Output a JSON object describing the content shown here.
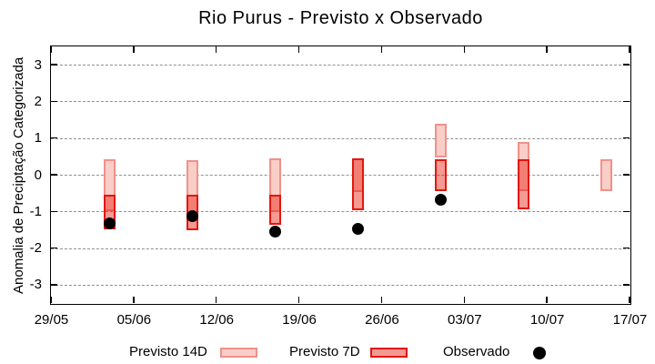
{
  "title": "Rio Purus - Previsto x Observado",
  "y_axis": {
    "label": "Anomalia de Preciptação Categorizada",
    "tick_values": [
      3,
      2,
      1,
      0,
      -1,
      -2,
      -3
    ],
    "range": [
      -3.5,
      3.5
    ]
  },
  "x_axis": {
    "tick_labels": [
      "29/05",
      "05/06",
      "12/06",
      "19/06",
      "26/06",
      "03/07",
      "10/07",
      "17/07"
    ],
    "tick_days": [
      0,
      7,
      14,
      21,
      28,
      35,
      42,
      49
    ],
    "total_days": 49
  },
  "legend": {
    "previsto14_label": "Previsto 14D",
    "previsto7_label": "Previsto 7D",
    "observado_label": "Observado"
  },
  "colors": {
    "previsto14_fill": "#f9cec7",
    "previsto14_border": "#f0918a",
    "previsto7_fill": "rgba(233,28,16,0.45)",
    "previsto7_border": "#e3170d",
    "observado": "#000000",
    "grid": "#8f8f8f",
    "axis": "#000000",
    "background": "#ffffff"
  },
  "chart_data": {
    "type": "candlestick+scatter",
    "title": "Rio Purus - Previsto x Observado",
    "xlabel": "",
    "ylabel": "Anomalia de Preciptação Categorizada",
    "ylim": [
      -3.5,
      3.5
    ],
    "grid": "dashed horizontal at integers -3..3",
    "legend_position": "bottom",
    "series_names": [
      "Previsto 14D",
      "Previsto 7D",
      "Observado"
    ],
    "points": [
      {
        "date": "03/06",
        "day": 5,
        "previsto14": [
          -1.0,
          0.43
        ],
        "previsto7": [
          -1.48,
          -0.55
        ],
        "observado": -1.33
      },
      {
        "date": "10/06",
        "day": 12,
        "previsto14": [
          -1.2,
          0.4
        ],
        "previsto7": [
          -1.51,
          -0.55
        ],
        "observado": -1.12
      },
      {
        "date": "17/06",
        "day": 19,
        "previsto14": [
          -1.02,
          0.45
        ],
        "previsto7": [
          -1.37,
          -0.55
        ],
        "observado": -1.55
      },
      {
        "date": "24/06",
        "day": 26,
        "previsto14": [
          -0.47,
          0.44
        ],
        "previsto7": [
          -0.98,
          0.44
        ],
        "observado": -1.48
      },
      {
        "date": "01/07",
        "day": 33,
        "previsto14": [
          0.46,
          1.38
        ],
        "previsto7": [
          -0.45,
          0.43
        ],
        "observado": -0.68
      },
      {
        "date": "08/07",
        "day": 40,
        "previsto14": [
          -0.45,
          0.9
        ],
        "previsto7": [
          -0.95,
          0.43
        ],
        "observado": null
      },
      {
        "date": "15/07",
        "day": 47,
        "previsto14": [
          -0.45,
          0.43
        ],
        "previsto7": null,
        "observado": null
      }
    ]
  }
}
